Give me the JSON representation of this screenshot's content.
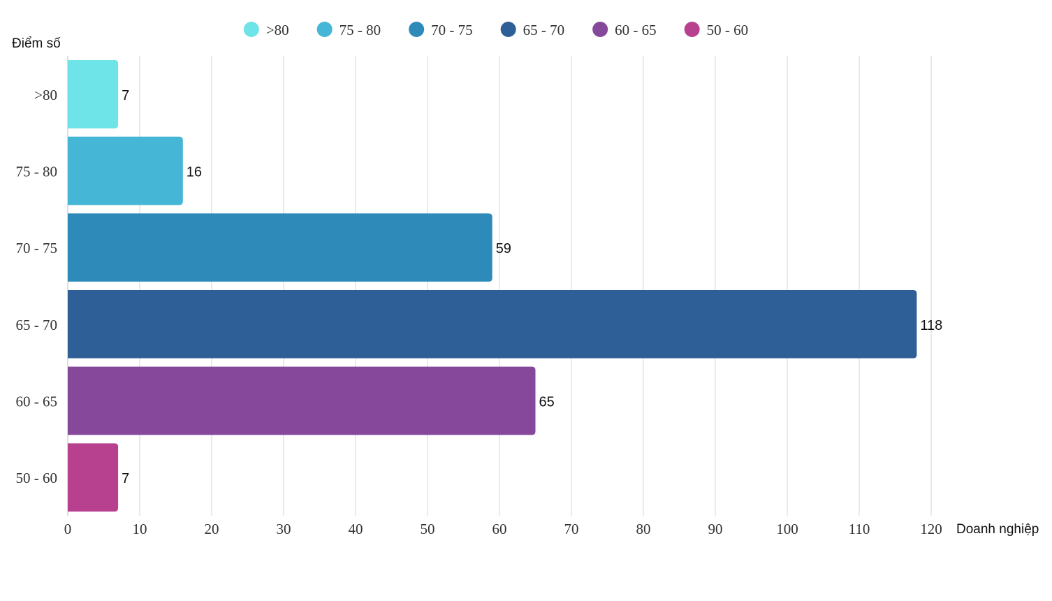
{
  "chart_data": {
    "type": "bar",
    "orientation": "horizontal",
    "categories": [
      ">80",
      "75 - 80",
      "70 - 75",
      "65 - 70",
      "60 - 65",
      "50 - 60"
    ],
    "values": [
      7,
      16,
      59,
      118,
      65,
      7
    ],
    "colors": [
      "#6ee3e8",
      "#45b6d6",
      "#2e8bb9",
      "#2e5f97",
      "#86489a",
      "#b8418f"
    ],
    "ylabel": "Điểm số",
    "xlabel": "Doanh nghiệp",
    "xlim": [
      0,
      120
    ],
    "xticks": [
      0,
      10,
      20,
      30,
      40,
      50,
      60,
      70,
      80,
      90,
      100,
      110,
      120
    ],
    "grid": true,
    "legend_position": "top",
    "legend": [
      ">80",
      "75 - 80",
      "70 - 75",
      "65 - 70",
      "60 - 65",
      "50 - 60"
    ]
  }
}
